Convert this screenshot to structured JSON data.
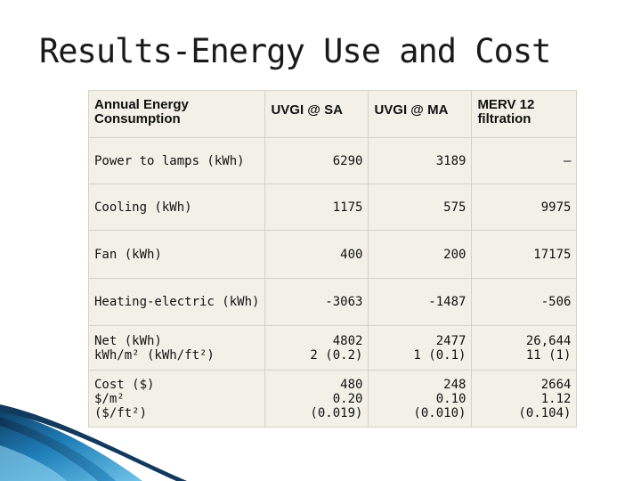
{
  "slide": {
    "title": "Results-Energy Use and Cost"
  },
  "table": {
    "headers": [
      "Annual Energy Consumption",
      "UVGI @ SA",
      "UVGI @ MA",
      "MERV 12 filtration"
    ],
    "rows": [
      {
        "label": [
          "Power to lamps (kWh)"
        ],
        "values": [
          [
            "6290"
          ],
          [
            "3189"
          ],
          [
            "–"
          ]
        ]
      },
      {
        "label": [
          "Cooling (kWh)"
        ],
        "values": [
          [
            "1175"
          ],
          [
            "575"
          ],
          [
            "9975"
          ]
        ]
      },
      {
        "label": [
          "Fan (kWh)"
        ],
        "values": [
          [
            "400"
          ],
          [
            "200"
          ],
          [
            "17175"
          ]
        ]
      },
      {
        "label": [
          "Heating-electric (kWh)"
        ],
        "values": [
          [
            "-3063"
          ],
          [
            "-1487"
          ],
          [
            "-506"
          ]
        ]
      },
      {
        "label": [
          "Net (kWh)",
          "kWh/m² (kWh/ft²)"
        ],
        "values": [
          [
            "4802",
            "2 (0.2)"
          ],
          [
            "2477",
            "1 (0.1)"
          ],
          [
            "26,644",
            "11 (1)"
          ]
        ]
      },
      {
        "label": [
          "Cost ($)",
          "$/m²",
          "($/ft²)"
        ],
        "values": [
          [
            "480",
            "0.20",
            "(0.019)"
          ],
          [
            "248",
            "0.10",
            "(0.010)"
          ],
          [
            "2664",
            "1.12",
            "(0.104)"
          ]
        ]
      }
    ]
  },
  "colors": {
    "table_background": "#f3f0e8",
    "cell_border": "#d7d2c4",
    "accent_blue": "#1f7fb8"
  }
}
